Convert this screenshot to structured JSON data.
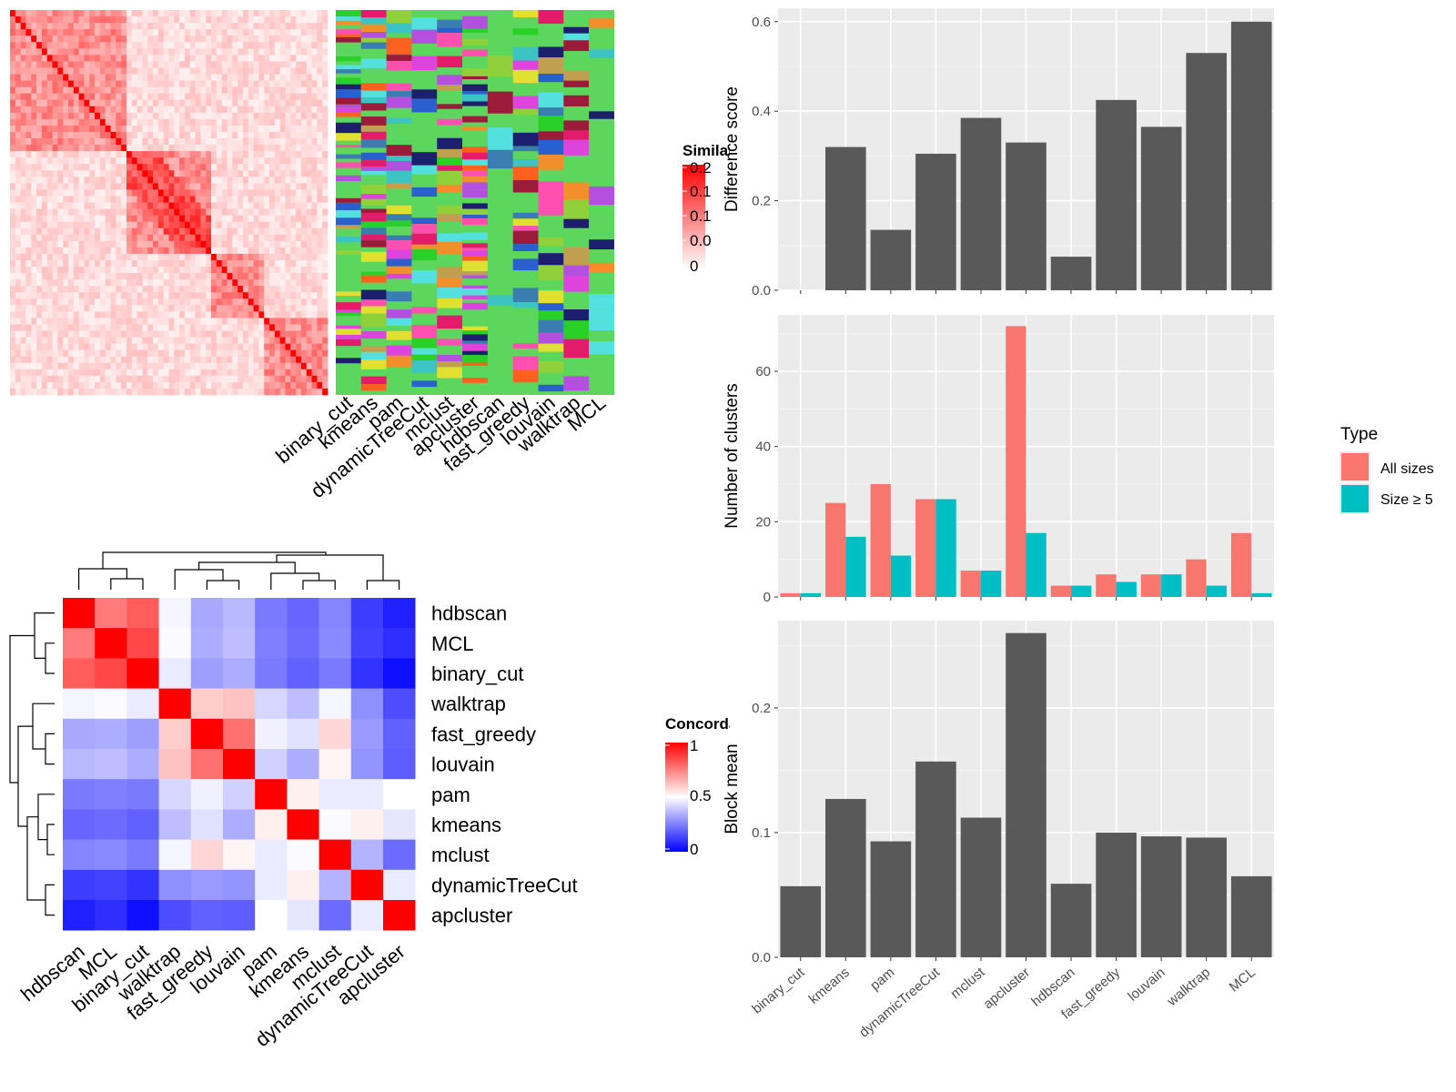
{
  "chart_data": [
    {
      "type": "heatmap",
      "legend_title": "Similarity",
      "legend_ticks": [
        "0.2",
        "0.1",
        "0.1",
        "0.0",
        "0"
      ],
      "methods": [
        "binary_cut",
        "kmeans",
        "pam",
        "dynamicTreeCut",
        "mclust",
        "apcluster",
        "hdbscan",
        "fast_greedy",
        "louvain",
        "walktrap",
        "MCL"
      ]
    },
    {
      "type": "heatmap",
      "legend_title": "Concordance",
      "legend_ticks": [
        "1",
        "0.5",
        "0"
      ],
      "legend_range": [
        0,
        1
      ],
      "row_labels": [
        "hdbscan",
        "MCL",
        "binary_cut",
        "walktrap",
        "fast_greedy",
        "louvain",
        "pam",
        "kmeans",
        "mclust",
        "dynamicTreeCut",
        "apcluster"
      ],
      "col_labels": [
        "hdbscan",
        "MCL",
        "binary_cut",
        "walktrap",
        "fast_greedy",
        "louvain",
        "pam",
        "kmeans",
        "mclust",
        "dynamicTreeCut",
        "apcluster"
      ],
      "values": [
        [
          1.0,
          0.76,
          0.82,
          0.48,
          0.33,
          0.36,
          0.24,
          0.2,
          0.26,
          0.12,
          0.06
        ],
        [
          0.76,
          1.0,
          0.86,
          0.49,
          0.34,
          0.37,
          0.25,
          0.21,
          0.27,
          0.13,
          0.09
        ],
        [
          0.82,
          0.86,
          1.0,
          0.46,
          0.31,
          0.34,
          0.24,
          0.19,
          0.24,
          0.1,
          0.03
        ],
        [
          0.48,
          0.49,
          0.46,
          1.0,
          0.6,
          0.62,
          0.42,
          0.37,
          0.48,
          0.28,
          0.15
        ],
        [
          0.33,
          0.34,
          0.31,
          0.6,
          1.0,
          0.78,
          0.47,
          0.44,
          0.58,
          0.3,
          0.19
        ],
        [
          0.36,
          0.37,
          0.34,
          0.62,
          0.78,
          1.0,
          0.41,
          0.34,
          0.52,
          0.29,
          0.18
        ],
        [
          0.24,
          0.25,
          0.24,
          0.42,
          0.47,
          0.41,
          1.0,
          0.53,
          0.46,
          0.46,
          0.5
        ],
        [
          0.2,
          0.21,
          0.19,
          0.37,
          0.44,
          0.34,
          0.53,
          1.0,
          0.49,
          0.53,
          0.45
        ],
        [
          0.26,
          0.27,
          0.24,
          0.48,
          0.58,
          0.52,
          0.46,
          0.49,
          1.0,
          0.35,
          0.21
        ],
        [
          0.12,
          0.13,
          0.1,
          0.28,
          0.3,
          0.29,
          0.46,
          0.53,
          0.35,
          1.0,
          0.46
        ],
        [
          0.06,
          0.09,
          0.03,
          0.15,
          0.19,
          0.18,
          0.5,
          0.45,
          0.21,
          0.46,
          1.0
        ]
      ]
    },
    {
      "type": "bar",
      "ylabel": "Difference score",
      "ylim": [
        0,
        0.63
      ],
      "yticks": [
        "0.0",
        "0.2",
        "0.4",
        "0.6"
      ],
      "categories": [
        "binary_cut",
        "kmeans",
        "pam",
        "dynamicTreeCut",
        "mclust",
        "apcluster",
        "hdbscan",
        "fast_greedy",
        "louvain",
        "walktrap",
        "MCL"
      ],
      "values": [
        0.0,
        0.32,
        0.135,
        0.305,
        0.385,
        0.33,
        0.075,
        0.425,
        0.365,
        0.53,
        0.6
      ],
      "color": "#595959"
    },
    {
      "type": "bar",
      "ylabel": "Number of clusters",
      "ylim": [
        0,
        75
      ],
      "yticks": [
        "0",
        "20",
        "40",
        "60"
      ],
      "categories": [
        "binary_cut",
        "kmeans",
        "pam",
        "dynamicTreeCut",
        "mclust",
        "apcluster",
        "hdbscan",
        "fast_greedy",
        "louvain",
        "walktrap",
        "MCL"
      ],
      "legend_title": "Type",
      "series": [
        {
          "name": "All sizes",
          "color": "#F8766D",
          "values": [
            1,
            25,
            30,
            26,
            7,
            72,
            3,
            6,
            6,
            10,
            17
          ]
        },
        {
          "name": "Size ≥ 5",
          "color": "#00BFC4",
          "values": [
            1,
            16,
            11,
            26,
            7,
            17,
            3,
            4,
            6,
            3,
            1
          ]
        }
      ]
    },
    {
      "type": "bar",
      "ylabel": "Block mean",
      "ylim": [
        0,
        0.27
      ],
      "yticks": [
        "0.0",
        "0.1",
        "0.2"
      ],
      "categories": [
        "binary_cut",
        "kmeans",
        "pam",
        "dynamicTreeCut",
        "mclust",
        "apcluster",
        "hdbscan",
        "fast_greedy",
        "louvain",
        "walktrap",
        "MCL"
      ],
      "values": [
        0.057,
        0.127,
        0.093,
        0.157,
        0.112,
        0.26,
        0.059,
        0.1,
        0.097,
        0.096,
        0.065
      ],
      "color": "#595959"
    }
  ]
}
